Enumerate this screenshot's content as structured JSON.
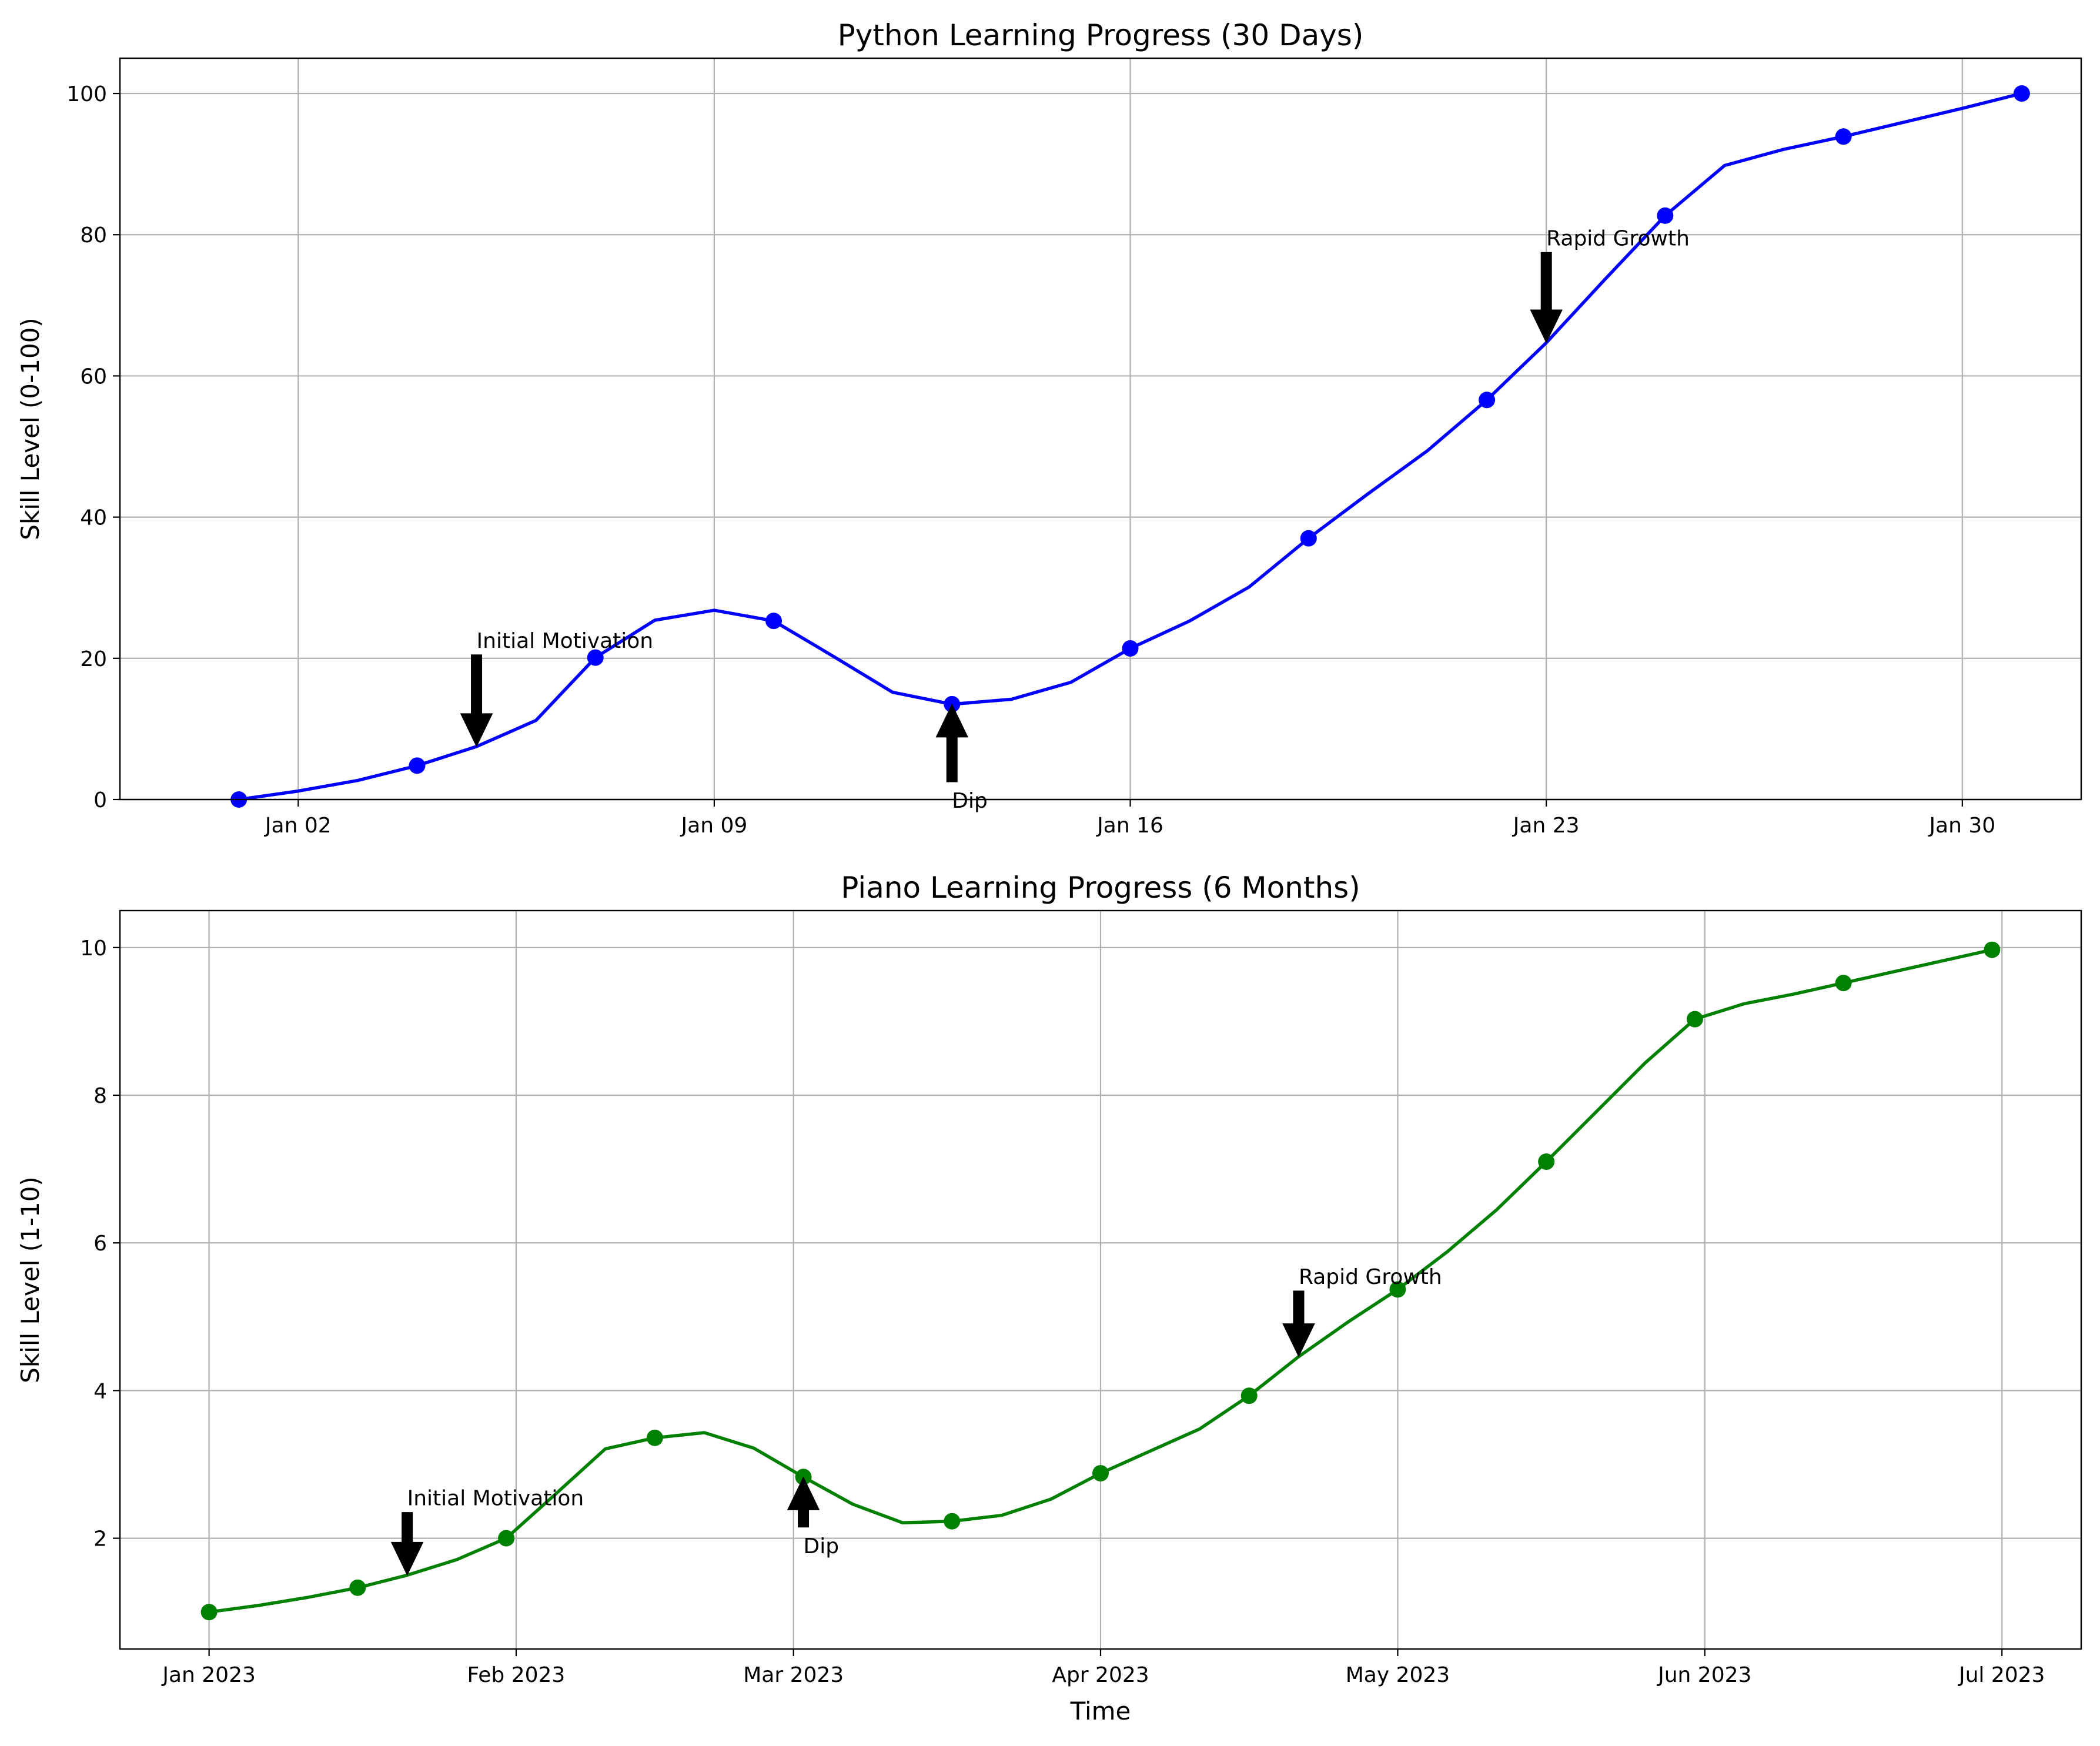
{
  "chart_data": [
    {
      "type": "line",
      "title": "Python Learning Progress (30 Days)",
      "xlabel": "",
      "ylabel": "Skill Level (0-100)",
      "x_type": "date",
      "xlim": [
        "2022-12-30",
        "2023-02-01"
      ],
      "ylim": [
        0,
        105
      ],
      "x_ticks": [
        "2023-01-02",
        "2023-01-09",
        "2023-01-16",
        "2023-01-23",
        "2023-01-30"
      ],
      "x_tick_labels": [
        "Jan 02",
        "Jan 09",
        "Jan 16",
        "Jan 23",
        "Jan 30"
      ],
      "y_ticks": [
        0,
        20,
        40,
        60,
        80,
        100
      ],
      "y_tick_labels": [
        "0",
        "20",
        "40",
        "60",
        "80",
        "100"
      ],
      "grid": true,
      "color": "#0000ff",
      "series": [
        {
          "x": [
            "2023-01-01",
            "2023-01-02",
            "2023-01-03",
            "2023-01-04",
            "2023-01-05",
            "2023-01-06",
            "2023-01-07",
            "2023-01-08",
            "2023-01-09",
            "2023-01-10",
            "2023-01-11",
            "2023-01-12",
            "2023-01-13",
            "2023-01-14",
            "2023-01-15",
            "2023-01-16",
            "2023-01-17",
            "2023-01-18",
            "2023-01-19",
            "2023-01-20",
            "2023-01-21",
            "2023-01-22",
            "2023-01-23",
            "2023-01-24",
            "2023-01-25",
            "2023-01-26",
            "2023-01-27",
            "2023-01-28",
            "2023-01-29",
            "2023-01-30",
            "2023-01-31"
          ],
          "values": [
            0,
            1.2,
            2.7,
            4.8,
            7.5,
            11.2,
            20.1,
            25.4,
            26.8,
            25.3,
            20.3,
            15.2,
            13.5,
            14.2,
            16.6,
            21.4,
            25.3,
            30.1,
            37.0,
            43.3,
            49.4,
            56.6,
            64.7,
            73.8,
            82.7,
            89.8,
            92.1,
            93.9,
            95.9,
            97.9,
            100
          ]
        }
      ],
      "marker_x": [
        "2023-01-01",
        "2023-01-04",
        "2023-01-07",
        "2023-01-10",
        "2023-01-13",
        "2023-01-16",
        "2023-01-19",
        "2023-01-22",
        "2023-01-25",
        "2023-01-28",
        "2023-01-31"
      ],
      "annotations": [
        {
          "text": "Initial Motivation",
          "x": "2023-01-05",
          "y": 7.5,
          "direction": "down",
          "tail": 20.5
        },
        {
          "text": "Dip",
          "x": "2023-01-13",
          "y": 13.5,
          "direction": "up",
          "tail": 2.5
        },
        {
          "text": "Rapid Growth",
          "x": "2023-01-23",
          "y": 64.7,
          "direction": "down",
          "tail": 77.5
        }
      ]
    },
    {
      "type": "line",
      "title": "Piano Learning Progress (6 Months)",
      "xlabel": "Time",
      "ylabel": "Skill Level (1-10)",
      "x_type": "date",
      "xlim": [
        "2022-12-23",
        "2023-07-09"
      ],
      "ylim": [
        0.5,
        10.5
      ],
      "x_ticks": [
        "2023-01-01",
        "2023-02-01",
        "2023-03-01",
        "2023-04-01",
        "2023-05-01",
        "2023-06-01",
        "2023-07-01"
      ],
      "x_tick_labels": [
        "Jan 2023",
        "Feb 2023",
        "Mar 2023",
        "Apr 2023",
        "May 2023",
        "Jun 2023",
        "Jul 2023"
      ],
      "y_ticks": [
        2,
        4,
        6,
        8,
        10
      ],
      "y_tick_labels": [
        "2",
        "4",
        "6",
        "8",
        "10"
      ],
      "grid": true,
      "color": "#008000",
      "series": [
        {
          "x": [
            "2023-01-01",
            "2023-01-06",
            "2023-01-11",
            "2023-01-16",
            "2023-01-21",
            "2023-01-26",
            "2023-01-31",
            "2023-02-05",
            "2023-02-10",
            "2023-02-15",
            "2023-02-20",
            "2023-02-25",
            "2023-03-02",
            "2023-03-07",
            "2023-03-12",
            "2023-03-17",
            "2023-03-22",
            "2023-03-27",
            "2023-04-01",
            "2023-04-06",
            "2023-04-11",
            "2023-04-16",
            "2023-04-21",
            "2023-04-26",
            "2023-05-01",
            "2023-05-06",
            "2023-05-11",
            "2023-05-16",
            "2023-05-21",
            "2023-05-26",
            "2023-05-31",
            "2023-06-05",
            "2023-06-10",
            "2023-06-15",
            "2023-06-20",
            "2023-06-25",
            "2023-06-30"
          ],
          "values": [
            1.0,
            1.09,
            1.2,
            1.33,
            1.5,
            1.71,
            2.0,
            2.6,
            3.21,
            3.36,
            3.43,
            3.22,
            2.83,
            2.46,
            2.21,
            2.23,
            2.31,
            2.53,
            2.88,
            3.18,
            3.48,
            3.93,
            4.46,
            4.93,
            5.37,
            5.88,
            6.45,
            7.1,
            7.77,
            8.44,
            9.03,
            9.24,
            9.37,
            9.52,
            9.67,
            9.82,
            9.97
          ]
        }
      ],
      "marker_x": [
        "2023-01-01",
        "2023-01-16",
        "2023-01-31",
        "2023-02-15",
        "2023-03-02",
        "2023-03-17",
        "2023-04-01",
        "2023-04-16",
        "2023-05-01",
        "2023-05-16",
        "2023-05-31",
        "2023-06-15",
        "2023-06-30"
      ],
      "annotations": [
        {
          "text": "Initial Motivation",
          "x": "2023-01-21",
          "y": 1.5,
          "direction": "down",
          "tail": 2.35
        },
        {
          "text": "Dip",
          "x": "2023-03-02",
          "y": 2.83,
          "direction": "up",
          "tail": 2.15
        },
        {
          "text": "Rapid Growth",
          "x": "2023-04-21",
          "y": 4.46,
          "direction": "down",
          "tail": 5.35
        }
      ]
    }
  ]
}
